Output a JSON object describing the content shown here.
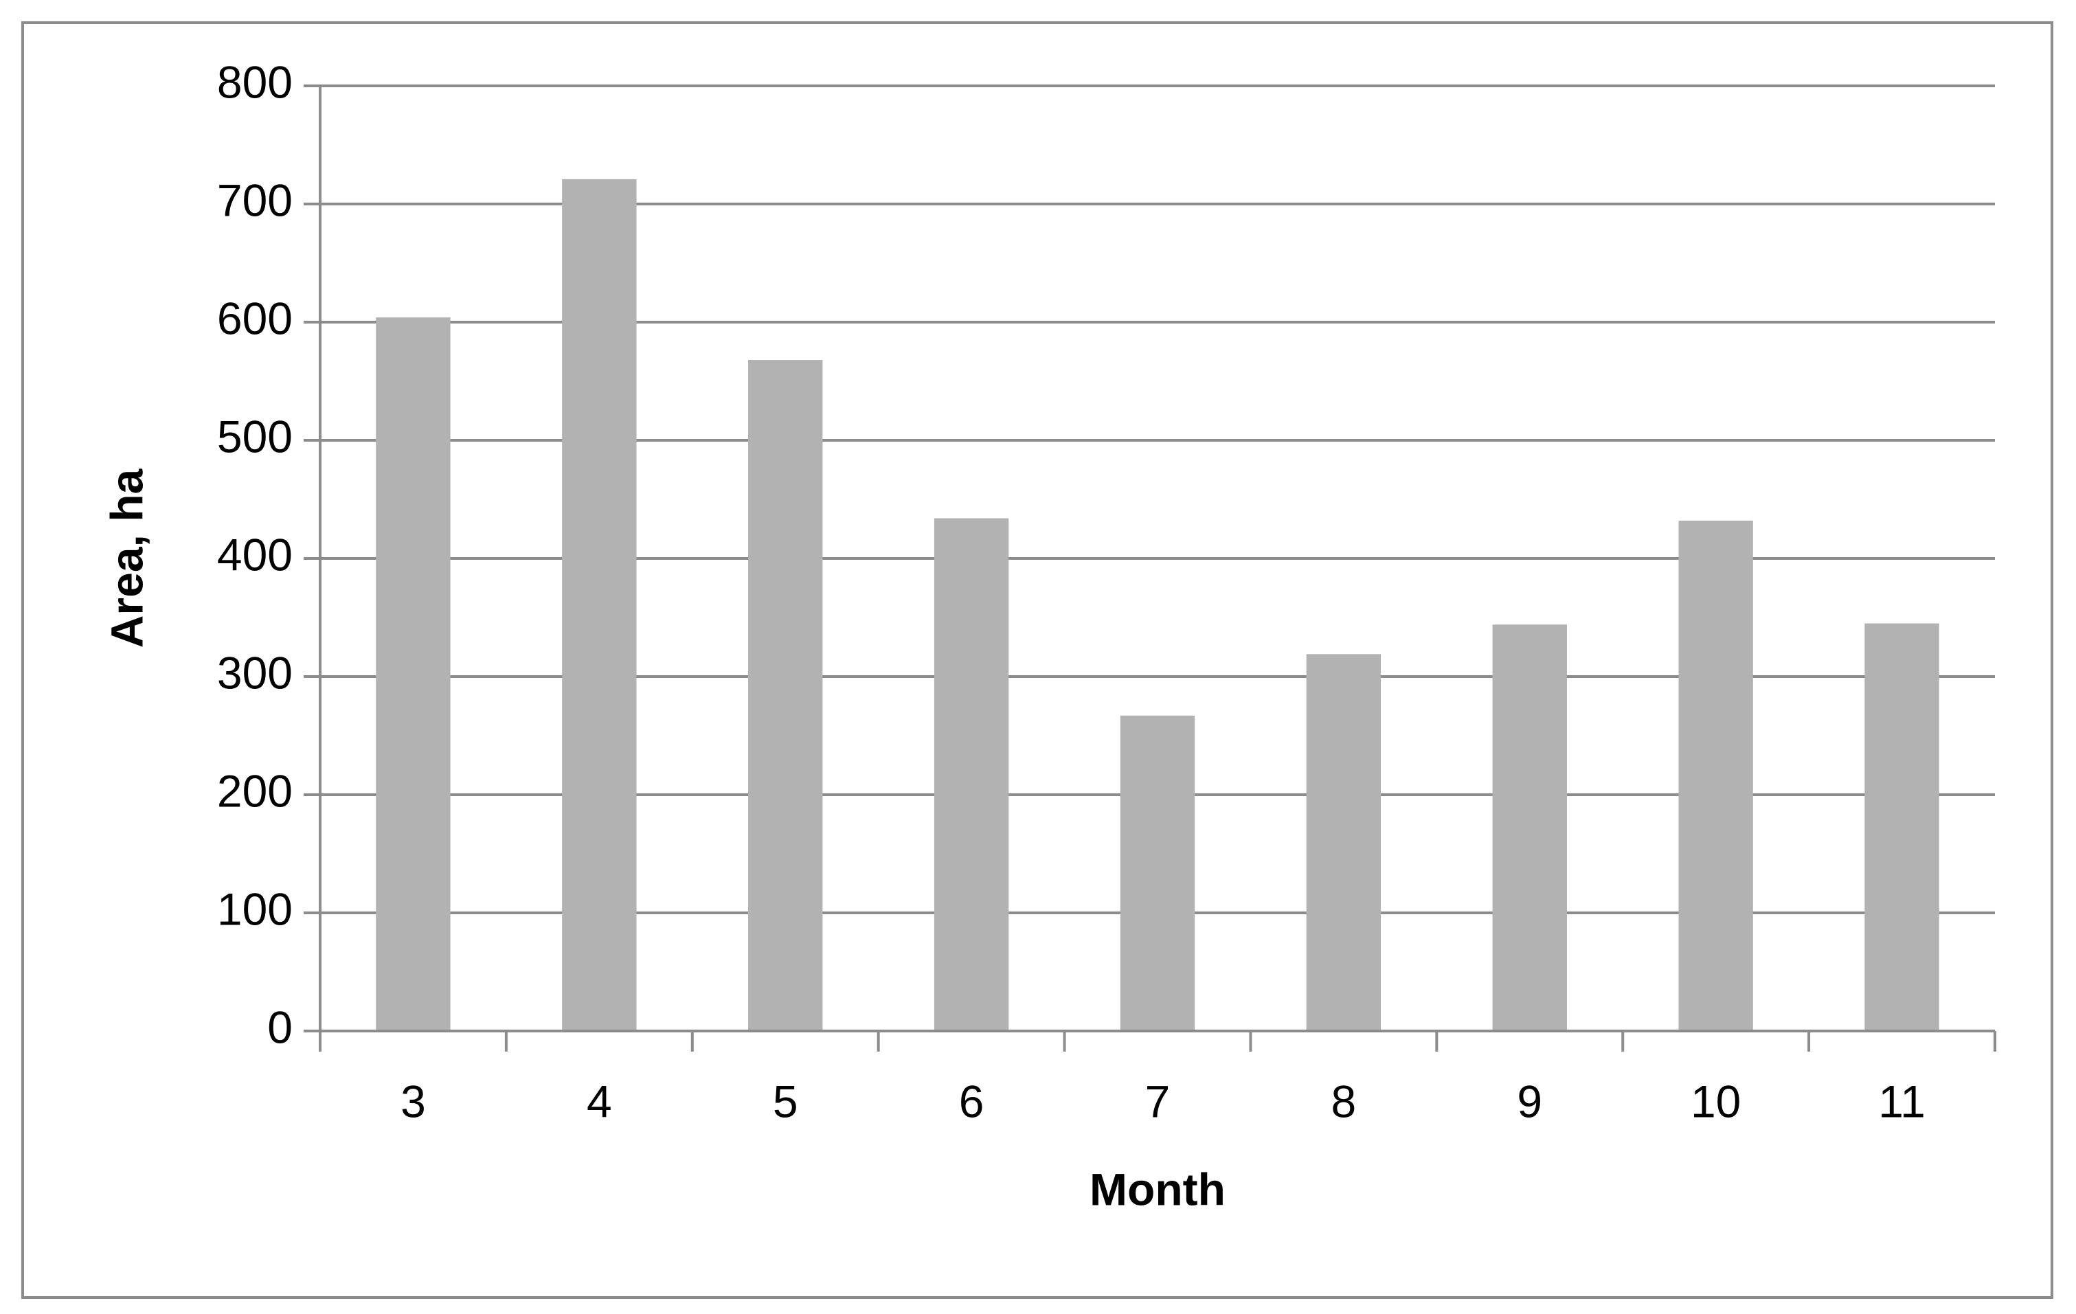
{
  "chart_data": {
    "type": "bar",
    "x_label": "Month",
    "y_label": "Area, ha",
    "categories": [
      "3",
      "4",
      "5",
      "6",
      "7",
      "8",
      "9",
      "10",
      "11"
    ],
    "values": [
      604,
      721,
      568,
      434,
      267,
      319,
      344,
      432,
      345
    ],
    "color": "#b2b2b2",
    "ylim": [
      0,
      800
    ],
    "yticks": [
      0,
      100,
      200,
      300,
      400,
      500,
      600,
      700,
      800
    ],
    "grid": true
  }
}
